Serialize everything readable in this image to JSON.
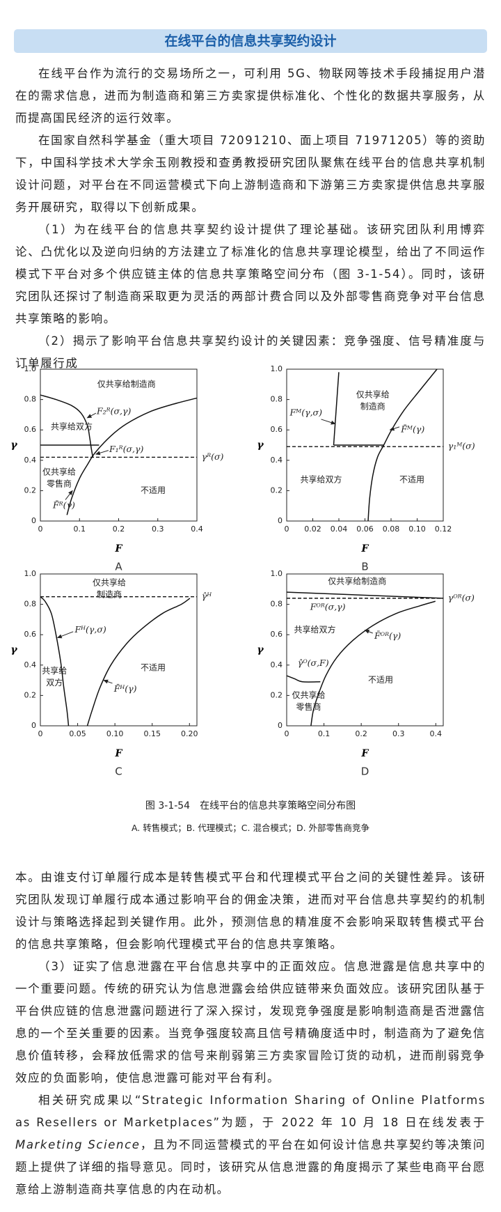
{
  "header": {
    "title": "在线平台的信息共享契约设计"
  },
  "body_before": [
    "在线平台作为流行的交易场所之一，可利用 5G、物联网等技术手段捕捉用户潜在的需求信息，进而为制造商和第三方卖家提供标准化、个性化的数据共享服务，从而提高国民经济的运行效率。",
    "在国家自然科学基金（重大项目 72091210、面上项目 71971205）等的资助下，中国科学技术大学余玉刚教授和查勇教授研究团队聚焦在线平台的信息共享机制设计问题，对平台在不同运营模式下向上游制造商和下游第三方卖家提供信息共享服务开展研究，取得以下创新成果。",
    "（1）为在线平台的信息共享契约设计提供了理论基础。该研究团队利用博弈论、凸优化以及逆向归纳的方法建立了标准化的信息共享理论模型，给出了不同运作模式下平台对多个供应链主体的信息共享策略空间分布（图 3-1-54）。同时，该研究团队还探讨了制造商采取更为灵活的两部计费合同以及外部零售商竞争对平台信息共享策略的影响。",
    "（2）揭示了影响平台信息共享契约设计的关键因素：竞争强度、信号精准度与订单履行成"
  ],
  "figure": {
    "panels": [
      {
        "letter": "A",
        "x_label": "F",
        "y_label": "γ",
        "xlim": [
          0,
          0.4
        ],
        "ylim": [
          0,
          1
        ],
        "xticks": [
          0,
          0.1,
          0.2,
          0.3,
          0.4
        ],
        "yticks": [
          0,
          0.2,
          0.4,
          0.6,
          0.8,
          {
            "value": 1,
            "label": "1.0"
          }
        ],
        "regions": [
          [
            "仅共享给制造商"
          ],
          [
            "共享给双方"
          ],
          [
            "仅共享给",
            "零售商"
          ],
          [
            "不适用"
          ]
        ],
        "curve_labels": [
          "F₂ᴿ(σ,γ)",
          "F₁ᴿ(σ,γ)",
          "γᴿ(σ)",
          "F̄ᴿ(γ)"
        ]
      },
      {
        "letter": "B",
        "x_label": "F",
        "y_label": "γ",
        "xlim": [
          0,
          0.12
        ],
        "ylim": [
          0,
          1
        ],
        "xticks": [
          0,
          0.02,
          0.04,
          0.06,
          0.08,
          {
            "value": 0.1,
            "label": "0.10"
          },
          0.12
        ],
        "yticks": [
          0,
          0.2,
          0.4,
          0.6,
          0.8,
          {
            "value": 1,
            "label": "1.0"
          }
        ],
        "regions": [
          [
            "仅共享给",
            "制造商"
          ],
          [
            "共享给双方"
          ],
          [
            "不适用"
          ]
        ],
        "curve_labels": [
          "Fᴹ(γ,σ)",
          "F̄ᴹ(γ)",
          "γ₁ᴹ(σ)"
        ]
      },
      {
        "letter": "C",
        "x_label": "F",
        "y_label": "γ",
        "xlim": [
          0,
          0.21
        ],
        "ylim": [
          0,
          1
        ],
        "xticks": [
          0,
          0.05,
          {
            "value": 0.1,
            "label": "0.10"
          },
          0.15,
          {
            "value": 0.2,
            "label": "0.20"
          }
        ],
        "yticks": [
          0,
          0.2,
          0.4,
          0.6,
          0.8,
          {
            "value": 1,
            "label": "1.0"
          }
        ],
        "regions": [
          [
            "仅共享给",
            "制造商"
          ],
          [
            "共享给",
            "双方"
          ],
          [
            "不适用"
          ]
        ],
        "curve_labels": [
          "Fᴴ(γ,σ)",
          "F̄ᴴ(γ)",
          "γ̂ᴴ"
        ]
      },
      {
        "letter": "D",
        "x_label": "F",
        "y_label": "γ",
        "xlim": [
          0,
          0.42
        ],
        "ylim": [
          0,
          1
        ],
        "xticks": [
          0,
          0.1,
          0.2,
          0.3,
          0.4
        ],
        "yticks": [
          0,
          0.2,
          0.4,
          0.6,
          0.8,
          {
            "value": 1,
            "label": "1.0"
          }
        ],
        "regions": [
          [
            "仅共享给制造商"
          ],
          [
            "共享给双方"
          ],
          [
            "仅共享给",
            "零售商"
          ],
          [
            "不适用"
          ]
        ],
        "curve_labels": [
          "Fᴼᴿ(σ,γ)",
          "γᴼᴿ(σ)",
          "F̄ᴼᴿ(γ)",
          "γ̂ᴼ(σ,F)"
        ]
      }
    ],
    "caption": "图 3-1-54　在线平台的信息共享策略空间分布图",
    "subcaption": "A. 转售模式；B. 代理模式；C. 混合模式；D. 外部零售商竞争"
  },
  "body_after": [
    "本。由谁支付订单履行成本是转售模式平台和代理模式平台之间的关键性差异。该研究团队发现订单履行成本通过影响平台的佣金决策，进而对平台信息共享契约的机制设计与策略选择起到关键作用。此外，预测信息的精准度不会影响采取转售模式平台的信息共享策略，但会影响代理模式平台的信息共享策略。",
    "（3）证实了信息泄露在平台信息共享中的正面效应。信息泄露是信息共享中的一个重要问题。传统的研究认为信息泄露会给供应链带来负面效应。该研究团队基于平台供应链的信息泄露问题进行了深入探讨，发现竞争强度是影响制造商是否泄露信息的一个至关重要的因素。当竞争强度较高且信号精确度适中时，制造商为了避免信息价值转移，会释放低需求的信号来削弱第三方卖家冒险订货的动机，进而削弱竞争效应的负面影响，使信息泄露可能对平台有利。"
  ],
  "closing": [
    "相关研究成果以“Strategic Information Sharing of Online Platforms as Resellers or Marketplaces”为题，于 2022 年 10 月 18 日在线发表于 ",
    "Marketing Science",
    "，且为不同运营模式的平台在如何设计信息共享契约等决策问题上提供了详细的指导意见。同时，该研究从信息泄露的角度揭示了某些电商平台愿意给上游制造商共享信息的内在动机。"
  ]
}
